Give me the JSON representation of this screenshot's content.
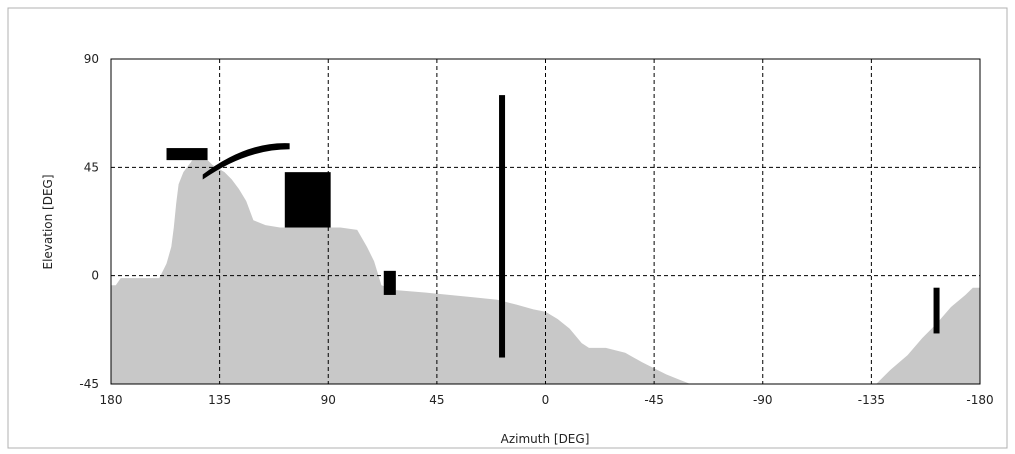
{
  "chart_data": {
    "type": "area",
    "title": "",
    "xlabel": "Azimuth [DEG]",
    "ylabel": "Elevation [DEG]",
    "xlim": [
      180,
      -180
    ],
    "ylim": [
      -45,
      90
    ],
    "x_reversed": true,
    "x_ticks": [
      180,
      135,
      90,
      45,
      0,
      -45,
      -90,
      -135,
      -180
    ],
    "y_ticks": [
      -45,
      0,
      45,
      90
    ],
    "x_tick_labels": [
      "180",
      "135",
      "90",
      "45",
      "0",
      "-45",
      "-90",
      "-135",
      "-180"
    ],
    "y_tick_labels": [
      "-45",
      "0",
      "45",
      "90"
    ],
    "grid": "dashed",
    "legend": "none",
    "colors": {
      "mask_fill": "#c8c8c8",
      "dark_fill": "#888888",
      "obstruction": "#000000",
      "grid": "#000000",
      "axis": "#000000"
    },
    "series": [
      {
        "role": "horizon_mask",
        "color": "#c8c8c8",
        "points": [
          [
            180,
            -45
          ],
          [
            180,
            -4
          ],
          [
            178,
            -4
          ],
          [
            176,
            -1
          ],
          [
            173,
            -1
          ],
          [
            170,
            -1
          ],
          [
            165,
            -1
          ],
          [
            160,
            -1
          ],
          [
            157,
            5
          ],
          [
            155,
            12
          ],
          [
            154,
            20
          ],
          [
            153,
            30
          ],
          [
            152,
            38
          ],
          [
            150,
            43
          ],
          [
            147,
            47
          ],
          [
            145,
            50
          ],
          [
            142,
            50
          ],
          [
            138,
            46
          ],
          [
            133,
            43
          ],
          [
            130,
            40
          ],
          [
            127,
            36
          ],
          [
            124,
            31
          ],
          [
            121,
            23
          ],
          [
            116,
            21
          ],
          [
            110,
            20
          ],
          [
            100,
            20
          ],
          [
            85,
            20
          ],
          [
            78,
            19
          ],
          [
            74,
            12
          ],
          [
            71,
            6
          ],
          [
            68,
            -4
          ],
          [
            62,
            -6
          ],
          [
            50,
            -7
          ],
          [
            40,
            -8
          ],
          [
            30,
            -9
          ],
          [
            20,
            -10
          ],
          [
            12,
            -12
          ],
          [
            5,
            -14
          ],
          [
            0,
            -15
          ],
          [
            -5,
            -18
          ],
          [
            -10,
            -22
          ],
          [
            -15,
            -28
          ],
          [
            -18,
            -30
          ],
          [
            -25,
            -30
          ],
          [
            -33,
            -32
          ],
          [
            -40,
            -36
          ],
          [
            -50,
            -41
          ],
          [
            -55,
            -43
          ],
          [
            -60,
            -45
          ]
        ]
      },
      {
        "role": "horizon_mask",
        "color": "#c8c8c8",
        "points": [
          [
            -137,
            -45
          ],
          [
            -143,
            -39
          ],
          [
            -150,
            -33
          ],
          [
            -156,
            -26
          ],
          [
            -162,
            -20
          ],
          [
            -168,
            -13
          ],
          [
            -174,
            -8
          ],
          [
            -177,
            -5
          ],
          [
            -180,
            -5
          ],
          [
            -180,
            -45
          ]
        ]
      }
    ],
    "obstructions": [
      {
        "shape": "arc",
        "color": "#000000",
        "az_from": 142,
        "az_to": 106,
        "el_from": 42,
        "el_to": 55
      },
      {
        "shape": "patch",
        "color": "#000000",
        "az_from": 157,
        "az_to": 140,
        "el_from": 48,
        "el_to": 53
      },
      {
        "shape": "patch",
        "color": "#000000",
        "az_from": 108,
        "az_to": 89,
        "el_from": 20,
        "el_to": 43
      },
      {
        "shape": "mast",
        "color": "#000000",
        "az": 18,
        "el_from": -34,
        "el_to": 75
      },
      {
        "shape": "mast",
        "color": "#000000",
        "az": -162,
        "el_from": -24,
        "el_to": -5
      },
      {
        "shape": "patch",
        "color": "#000000",
        "az_from": 67,
        "az_to": 62,
        "el_from": -8,
        "el_to": 2
      }
    ]
  }
}
